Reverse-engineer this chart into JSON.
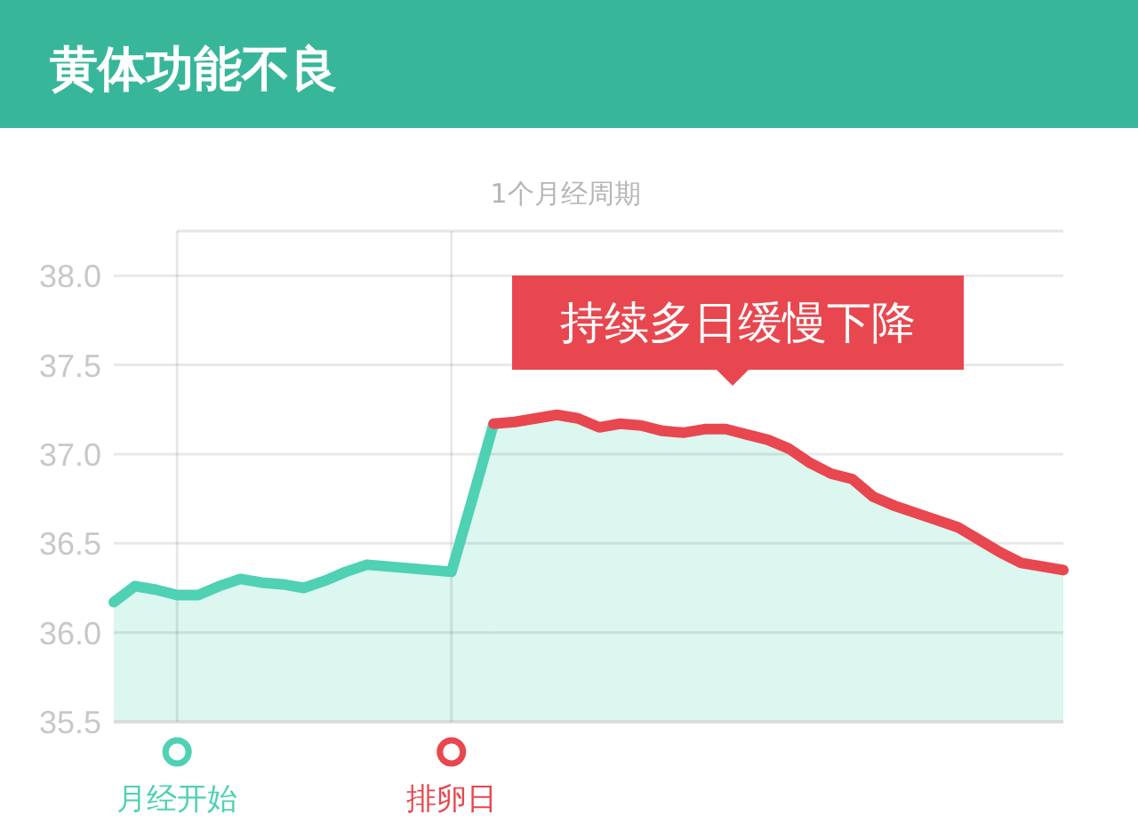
{
  "chart_data": {
    "type": "area",
    "title": "黄体功能不良",
    "subtitle": "1个月经周期",
    "categories": [
      null,
      null,
      null,
      "月经开始",
      null,
      null,
      null,
      null,
      null,
      null,
      null,
      null,
      null,
      null,
      null,
      null,
      "排卵日",
      null,
      null,
      null,
      null,
      null,
      null,
      null,
      null,
      null,
      null,
      null,
      null,
      null,
      null,
      null,
      null,
      null,
      null,
      null,
      null,
      null,
      null,
      null,
      null,
      null,
      null,
      null,
      null,
      null
    ],
    "series": [
      {
        "color": "#4fd1b3",
        "values": [
          36.17,
          36.26,
          36.24,
          36.21,
          36.21,
          36.26,
          36.3,
          36.28,
          36.27,
          36.25,
          36.29,
          36.34,
          36.38,
          36.37,
          36.36,
          36.35,
          36.34,
          36.75,
          37.17,
          null,
          null,
          null,
          null,
          null,
          null,
          null,
          null,
          null,
          null,
          null,
          null,
          null,
          null,
          null,
          null,
          null,
          null,
          null,
          null,
          null,
          null,
          null,
          null,
          null,
          null,
          null
        ]
      },
      {
        "color": "#e8474f",
        "values": [
          null,
          null,
          null,
          null,
          null,
          null,
          null,
          null,
          null,
          null,
          null,
          null,
          null,
          null,
          null,
          null,
          null,
          null,
          37.17,
          37.18,
          37.2,
          37.22,
          37.2,
          37.15,
          37.17,
          37.16,
          37.13,
          37.12,
          37.14,
          37.14,
          37.11,
          37.08,
          37.03,
          36.95,
          36.89,
          36.86,
          36.76,
          36.71,
          36.67,
          36.63,
          36.59,
          36.52,
          36.45,
          36.39,
          36.37,
          36.35
        ]
      }
    ],
    "ylim": [
      35.5,
      38.25
    ],
    "yticks": [
      35.5,
      {
        "value": 36,
        "label": "36.0"
      },
      36.5,
      {
        "value": 37,
        "label": "37.0"
      },
      37.5,
      {
        "value": 38,
        "label": "38.0"
      }
    ],
    "grid": true,
    "line_style": "solid",
    "annotations": [
      "持续多日缓慢下降"
    ]
  }
}
